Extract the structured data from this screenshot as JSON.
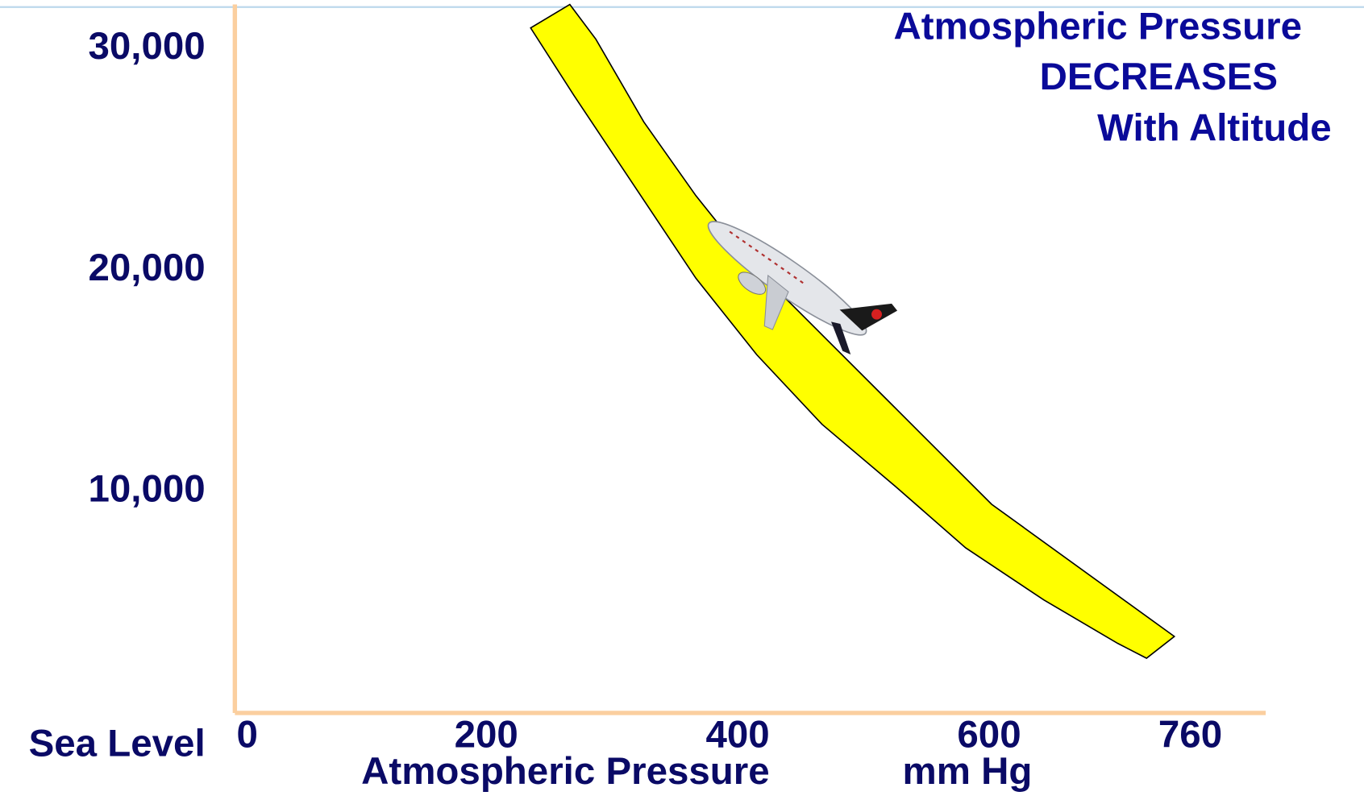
{
  "chart_data": {
    "type": "line",
    "title": [
      "Atmospheric Pressure",
      "DECREASES",
      "With Altitude"
    ],
    "x_label": "Atmospheric Pressure",
    "x_unit": "mm  Hg",
    "xlim": [
      0,
      820
    ],
    "xticks": [
      0,
      200,
      400,
      600,
      760
    ],
    "ylim": [
      0,
      32000
    ],
    "yticks": [
      {
        "value": 0,
        "label": "Sea Level"
      },
      {
        "value": 10000,
        "label": "10,000"
      },
      {
        "value": 20000,
        "label": "20,000"
      },
      {
        "value": 30000,
        "label": "30,000"
      }
    ]
  }
}
